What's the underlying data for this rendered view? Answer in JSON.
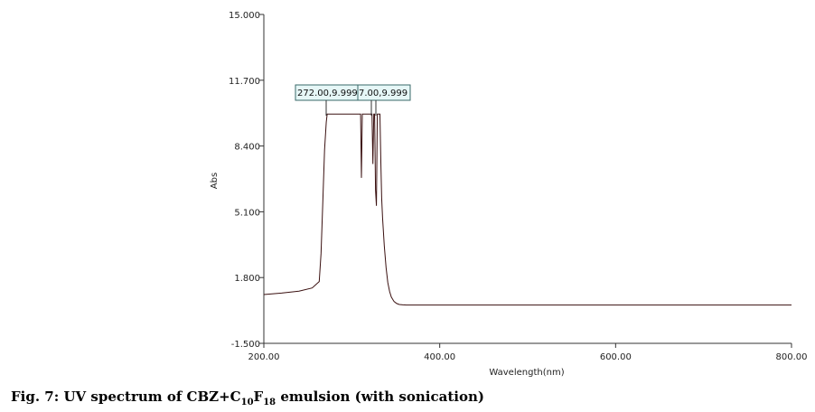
{
  "chart_data": {
    "type": "line",
    "xlabel": "Wavelength(nm)",
    "ylabel": "Abs",
    "xlim": [
      200,
      800
    ],
    "ylim": [
      -1.5,
      15.0
    ],
    "x_ticks": [
      "200.00",
      "400.00",
      "600.00",
      "800.00"
    ],
    "y_ticks": [
      "15.000",
      "11.700",
      "8.400",
      "5.100",
      "1.800",
      "-1.500"
    ],
    "peak_labels": [
      "272.00,9.999",
      "7.00,9.999"
    ],
    "series": [
      {
        "x": [
          200,
          220,
          240,
          255,
          263,
          265,
          267,
          269,
          271,
          272,
          290,
          310,
          311,
          312,
          313,
          314,
          323,
          324,
          325,
          326,
          327,
          328,
          329,
          330,
          331,
          332,
          333,
          334,
          335,
          337,
          339,
          341,
          343,
          345,
          348,
          351,
          354,
          358,
          362,
          368,
          380,
          420,
          500,
          600,
          700,
          800
        ],
        "y": [
          0.95,
          1.02,
          1.12,
          1.28,
          1.6,
          3.0,
          5.5,
          8.2,
          9.6,
          9.999,
          9.999,
          9.999,
          6.8,
          9.999,
          9.999,
          9.999,
          9.999,
          7.5,
          9.999,
          9.999,
          6.2,
          5.4,
          9.999,
          9.999,
          9.999,
          9.999,
          7.6,
          5.8,
          4.8,
          3.4,
          2.3,
          1.55,
          1.1,
          0.82,
          0.6,
          0.5,
          0.45,
          0.43,
          0.42,
          0.42,
          0.42,
          0.42,
          0.42,
          0.42,
          0.42,
          0.42
        ]
      }
    ]
  },
  "caption": {
    "pre": "Fig. 7: UV spectrum of CBZ+C",
    "sub1": "10",
    "mid": "F",
    "sub2": "18",
    "post": " emulsion (with sonication)"
  }
}
